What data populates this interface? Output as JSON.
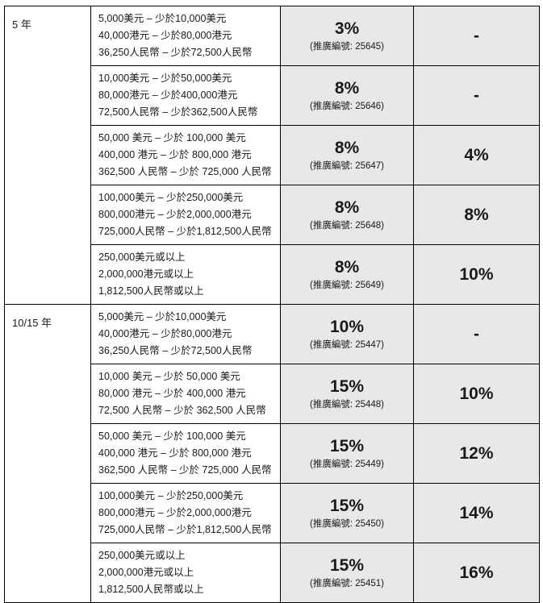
{
  "colors": {
    "highlight_bg": "#e8e8e8",
    "border": "#000000",
    "text": "#1a1a1a"
  },
  "table": {
    "sections": [
      {
        "term": "5 年",
        "rows": [
          {
            "amounts": [
              "5,000美元 – 少於10,000美元",
              "40,000港元 – 少於80,000港元",
              "36,250人民幣 – 少於72,500人民幣"
            ],
            "rate": "3%",
            "promo": "(推廣編號: 25645)",
            "bonus": "-"
          },
          {
            "amounts": [
              "10,000美元 – 少於50,000美元",
              "80,000港元 – 少於400,000港元",
              "72,500人民幣 – 少於362,500人民幣"
            ],
            "rate": "8%",
            "promo": "(推廣編號: 25646)",
            "bonus": "-"
          },
          {
            "amounts": [
              "50,000 美元 – 少於 100,000 美元",
              "400,000 港元 – 少於 800,000 港元",
              "362,500 人民幣 – 少於 725,000 人民幣"
            ],
            "rate": "8%",
            "promo": "(推廣編號: 25647)",
            "bonus": "4%"
          },
          {
            "amounts": [
              "100,000美元 – 少於250,000美元",
              "800,000港元 – 少於2,000,000港元",
              "725,000人民幣 – 少於1,812,500人民幣"
            ],
            "rate": "8%",
            "promo": "(推廣編號: 25648)",
            "bonus": "8%"
          },
          {
            "amounts": [
              "250,000美元或以上",
              "2,000,000港元或以上",
              "1,812,500人民幣或以上"
            ],
            "rate": "8%",
            "promo": "(推廣編號: 25649)",
            "bonus": "10%"
          }
        ]
      },
      {
        "term": "10/15 年",
        "rows": [
          {
            "amounts": [
              "5,000美元 – 少於10,000美元",
              "40,000港元 – 少於80,000港元",
              "36,250人民幣 – 少於72,500人民幣"
            ],
            "rate": "10%",
            "promo": "(推廣編號: 25447)",
            "bonus": "-"
          },
          {
            "amounts": [
              "10,000 美元 – 少於 50,000 美元",
              "80,000 港元 – 少於 400,000 港元",
              "72,500 人民幣 – 少於 362,500 人民幣"
            ],
            "rate": "15%",
            "promo": "(推廣編號: 25448)",
            "bonus": "10%"
          },
          {
            "amounts": [
              "50,000 美元 – 少於 100,000 美元",
              "400,000 港元 – 少於 800,000 港元",
              "362,500 人民幣 – 少於 725,000 人民幣"
            ],
            "rate": "15%",
            "promo": "(推廣編號: 25449)",
            "bonus": "12%"
          },
          {
            "amounts": [
              "100,000美元 – 少於250,000美元",
              "800,000港元 – 少於2,000,000港元",
              "725,000人民幣 – 少於1,812,500人民幣"
            ],
            "rate": "15%",
            "promo": "(推廣編號: 25450)",
            "bonus": "14%"
          },
          {
            "amounts": [
              "250,000美元或以上",
              "2,000,000港元或以上",
              "1,812,500人民幣或以上"
            ],
            "rate": "15%",
            "promo": "(推廣編號: 25451)",
            "bonus": "16%"
          }
        ]
      }
    ]
  }
}
